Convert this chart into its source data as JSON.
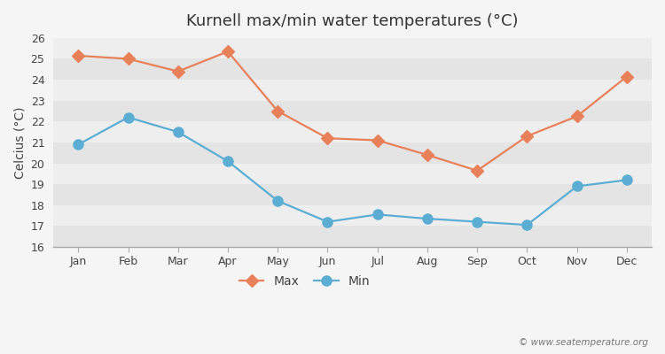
{
  "title": "Kurnell max/min water temperatures (°C)",
  "ylabel": "Celcius (°C)",
  "months": [
    "Jan",
    "Feb",
    "Mar",
    "Apr",
    "May",
    "Jun",
    "Jul",
    "Aug",
    "Sep",
    "Oct",
    "Nov",
    "Dec"
  ],
  "max_temps": [
    25.15,
    25.0,
    24.4,
    25.35,
    22.5,
    21.2,
    21.1,
    20.4,
    19.65,
    21.3,
    22.25,
    24.15
  ],
  "min_temps": [
    20.9,
    22.2,
    21.5,
    20.1,
    18.2,
    17.2,
    17.55,
    17.35,
    17.2,
    17.05,
    18.9,
    19.2
  ],
  "max_color": "#e8805a",
  "min_color": "#5badd4",
  "bg_color": "#f5f5f5",
  "plot_bg_light": "#eeeeee",
  "plot_bg_dark": "#e4e4e4",
  "grid_color": "#ffffff",
  "ylim": [
    16,
    26
  ],
  "yticks": [
    16,
    17,
    18,
    19,
    20,
    21,
    22,
    23,
    24,
    25,
    26
  ],
  "watermark": "© www.seatemperature.org",
  "legend_labels": [
    "Max",
    "Min"
  ],
  "max_marker": "D",
  "min_marker": "o",
  "max_markersize": 7,
  "min_markersize": 8,
  "linewidth": 1.6
}
